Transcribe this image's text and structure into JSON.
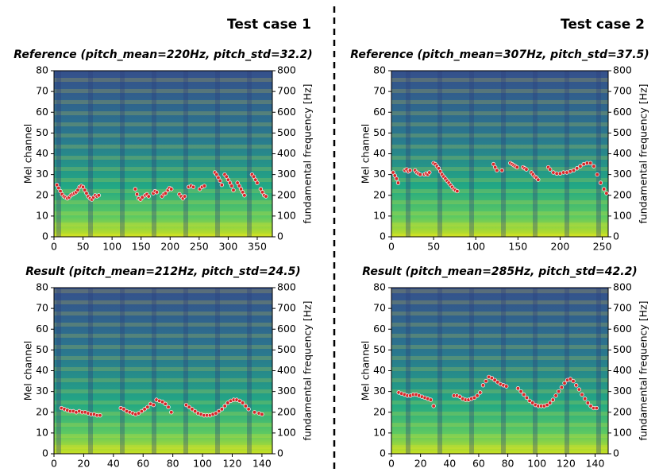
{
  "column_titles": [
    "Test case 1",
    "Test case 2"
  ],
  "chart_data": [
    {
      "type": "scatter",
      "title": "Reference (pitch_mean=220Hz, pitch_std=32.2)",
      "ylabel": "Mel channel",
      "y2label": "fundamental frequency [Hz]",
      "xlim": [
        0,
        376
      ],
      "xticks": [
        0,
        50,
        100,
        150,
        200,
        250,
        300,
        350
      ],
      "ylim": [
        0,
        80
      ],
      "yticks": [
        0,
        10,
        20,
        30,
        40,
        50,
        60,
        70,
        80
      ],
      "y2lim": [
        0,
        800
      ],
      "y2ticks": [
        0,
        100,
        200,
        300,
        400,
        500,
        600,
        700,
        800
      ],
      "series": [
        {
          "color": "#d62728",
          "axis": "y2",
          "x": [
            5,
            8,
            11,
            14,
            17,
            20,
            23,
            26,
            29,
            32,
            35,
            38,
            41,
            44,
            47,
            50,
            53,
            56,
            59,
            62,
            65,
            68,
            71,
            74,
            77,
            140,
            143,
            146,
            149,
            152,
            157,
            160,
            163,
            171,
            174,
            177,
            186,
            189,
            192,
            196,
            199,
            202,
            216,
            219,
            222,
            225,
            232,
            236,
            240,
            251,
            255,
            259,
            277,
            280,
            283,
            286,
            289,
            294,
            297,
            300,
            303,
            306,
            309,
            316,
            319,
            322,
            325,
            328,
            341,
            344,
            347,
            350,
            356,
            359,
            362,
            365
          ],
          "values": [
            250,
            235,
            220,
            205,
            195,
            190,
            185,
            190,
            200,
            205,
            210,
            215,
            225,
            240,
            245,
            240,
            225,
            210,
            195,
            185,
            180,
            190,
            200,
            195,
            200,
            230,
            205,
            185,
            180,
            190,
            200,
            205,
            195,
            210,
            220,
            215,
            195,
            205,
            210,
            225,
            235,
            230,
            205,
            195,
            185,
            195,
            240,
            245,
            240,
            230,
            240,
            245,
            310,
            300,
            285,
            270,
            250,
            300,
            290,
            275,
            260,
            245,
            225,
            260,
            245,
            230,
            215,
            200,
            300,
            290,
            275,
            260,
            230,
            215,
            200,
            195
          ]
        }
      ]
    },
    {
      "type": "scatter",
      "title": "Reference (pitch_mean=307Hz, pitch_std=37.5)",
      "ylabel": "Mel channel",
      "y2label": "fundamental frequency [Hz]",
      "xlim": [
        0,
        257
      ],
      "xticks": [
        0,
        50,
        100,
        150,
        200,
        250
      ],
      "ylim": [
        0,
        80
      ],
      "yticks": [
        0,
        10,
        20,
        30,
        40,
        50,
        60,
        70,
        80
      ],
      "y2lim": [
        0,
        800
      ],
      "y2ticks": [
        0,
        100,
        200,
        300,
        400,
        500,
        600,
        700,
        800
      ],
      "series": [
        {
          "color": "#d62728",
          "axis": "y2",
          "x": [
            2,
            4,
            6,
            8,
            16,
            18,
            20,
            22,
            28,
            30,
            32,
            34,
            39,
            41,
            43,
            45,
            50,
            52,
            54,
            56,
            58,
            60,
            62,
            64,
            66,
            68,
            70,
            72,
            74,
            76,
            78,
            121,
            123,
            125,
            131,
            141,
            143,
            145,
            147,
            149,
            156,
            158,
            160,
            166,
            168,
            170,
            172,
            174,
            186,
            188,
            192,
            196,
            200,
            204,
            208,
            212,
            216,
            220,
            224,
            228,
            232,
            236,
            240,
            244,
            248,
            252,
            255
          ],
          "values": [
            310,
            295,
            280,
            260,
            320,
            325,
            315,
            320,
            320,
            310,
            305,
            300,
            300,
            305,
            300,
            310,
            355,
            350,
            340,
            330,
            315,
            300,
            290,
            280,
            270,
            260,
            250,
            240,
            230,
            225,
            220,
            350,
            335,
            320,
            320,
            355,
            350,
            345,
            340,
            335,
            335,
            330,
            325,
            310,
            300,
            290,
            285,
            275,
            335,
            325,
            310,
            305,
            305,
            310,
            310,
            315,
            320,
            330,
            340,
            350,
            355,
            355,
            340,
            300,
            260,
            230,
            210
          ]
        }
      ]
    },
    {
      "type": "scatter",
      "title": "Result (pitch_mean=212Hz, pitch_std=24.5)",
      "ylabel": "Mel channel",
      "y2label": "fundamental frequency [Hz]",
      "xlim": [
        0,
        147
      ],
      "xticks": [
        0,
        20,
        40,
        60,
        80,
        100,
        120,
        140
      ],
      "ylim": [
        0,
        80
      ],
      "yticks": [
        0,
        10,
        20,
        30,
        40,
        50,
        60,
        70,
        80
      ],
      "y2lim": [
        0,
        800
      ],
      "y2ticks": [
        0,
        100,
        200,
        300,
        400,
        500,
        600,
        700,
        800
      ],
      "series": [
        {
          "color": "#d62728",
          "axis": "y2",
          "x": [
            5,
            7,
            9,
            11,
            13,
            15,
            17,
            19,
            21,
            23,
            25,
            27,
            29,
            31,
            45,
            47,
            49,
            51,
            53,
            55,
            57,
            59,
            61,
            63,
            65,
            67,
            69,
            71,
            73,
            75,
            77,
            79,
            89,
            91,
            93,
            95,
            97,
            99,
            101,
            103,
            105,
            107,
            109,
            111,
            113,
            115,
            117,
            119,
            121,
            123,
            125,
            127,
            129,
            131,
            135,
            138,
            140
          ],
          "values": [
            220,
            215,
            210,
            205,
            205,
            200,
            205,
            200,
            200,
            195,
            190,
            190,
            185,
            185,
            220,
            215,
            205,
            200,
            195,
            190,
            195,
            205,
            215,
            225,
            240,
            235,
            260,
            255,
            250,
            240,
            225,
            200,
            235,
            225,
            215,
            205,
            195,
            190,
            185,
            185,
            185,
            190,
            195,
            205,
            215,
            230,
            245,
            255,
            260,
            260,
            255,
            245,
            230,
            215,
            200,
            195,
            190
          ]
        }
      ]
    },
    {
      "type": "scatter",
      "title": "Result (pitch_mean=285Hz, pitch_std=42.2)",
      "ylabel": "Mel channel",
      "y2label": "fundamental frequency [Hz]",
      "xlim": [
        0,
        149
      ],
      "xticks": [
        0,
        20,
        40,
        60,
        80,
        100,
        120,
        140
      ],
      "ylim": [
        0,
        80
      ],
      "yticks": [
        0,
        10,
        20,
        30,
        40,
        50,
        60,
        70,
        80
      ],
      "y2lim": [
        0,
        800
      ],
      "y2ticks": [
        0,
        100,
        200,
        300,
        400,
        500,
        600,
        700,
        800
      ],
      "series": [
        {
          "color": "#d62728",
          "axis": "y2",
          "x": [
            5,
            7,
            9,
            11,
            13,
            15,
            17,
            19,
            21,
            23,
            25,
            27,
            29,
            43,
            45,
            47,
            49,
            51,
            53,
            55,
            57,
            59,
            61,
            63,
            65,
            67,
            69,
            71,
            73,
            75,
            77,
            79,
            87,
            89,
            91,
            93,
            95,
            97,
            99,
            101,
            103,
            105,
            107,
            109,
            111,
            113,
            115,
            117,
            119,
            121,
            123,
            125,
            127,
            129,
            131,
            133,
            135,
            137,
            139,
            141
          ],
          "values": [
            295,
            290,
            285,
            280,
            280,
            285,
            285,
            280,
            275,
            270,
            265,
            260,
            230,
            280,
            280,
            275,
            265,
            260,
            260,
            265,
            270,
            280,
            295,
            330,
            350,
            370,
            365,
            355,
            345,
            335,
            330,
            325,
            315,
            300,
            285,
            270,
            255,
            245,
            235,
            230,
            230,
            230,
            235,
            245,
            260,
            280,
            300,
            320,
            340,
            355,
            360,
            350,
            330,
            310,
            285,
            265,
            245,
            230,
            220,
            220
          ]
        }
      ]
    }
  ]
}
